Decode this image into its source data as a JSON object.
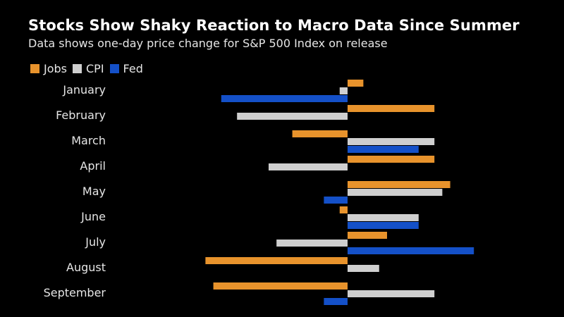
{
  "chart_data": {
    "type": "bar",
    "orientation": "horizontal",
    "title": "Stocks Show Shaky Reaction to Macro Data Since Summer",
    "subtitle": "Data shows one-day price change for S&P 500 Index on release",
    "xlabel": "",
    "ylabel": "",
    "unit": "%",
    "xlim": [
      -1.8,
      1.6
    ],
    "categories": [
      "January",
      "February",
      "March",
      "April",
      "May",
      "June",
      "July",
      "August",
      "September"
    ],
    "series": [
      {
        "name": "Jobs",
        "color": "#e8932c",
        "values": [
          0.2,
          1.1,
          -0.7,
          1.1,
          1.3,
          -0.1,
          0.5,
          -1.8,
          -1.7
        ]
      },
      {
        "name": "CPI",
        "color": "#cfcfcf",
        "values": [
          -0.1,
          -1.4,
          1.1,
          -1.0,
          1.2,
          0.9,
          -0.9,
          0.4,
          1.1
        ]
      },
      {
        "name": "Fed",
        "color": "#1450c8",
        "values": [
          -1.6,
          null,
          0.9,
          null,
          -0.3,
          0.9,
          1.6,
          null,
          -0.3
        ]
      }
    ]
  }
}
